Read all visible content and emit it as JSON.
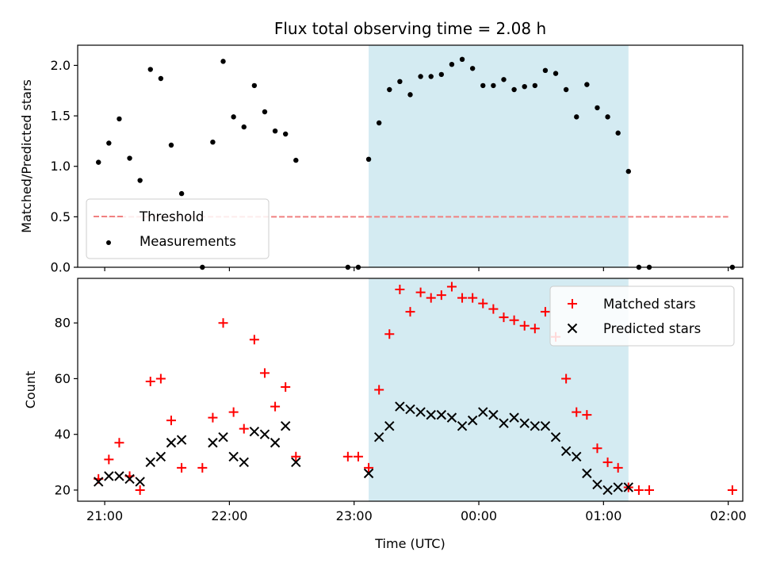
{
  "chart_data": [
    {
      "type": "scatter",
      "title": "Flux total observing time = 2.08 h",
      "xlabel": "",
      "ylabel": "Matched/Predicted stars",
      "xlim": [
        "20:47",
        "02:07"
      ],
      "ylim": [
        0,
        2.2
      ],
      "xticks": [
        "21:00",
        "22:00",
        "23:00",
        "00:00",
        "01:00",
        "02:00"
      ],
      "xtick_labels_visible": false,
      "yticks": [
        0.0,
        0.5,
        1.0,
        1.5,
        2.0
      ],
      "ytick_labels": [
        "0.0",
        "0.5",
        "1.0",
        "1.5",
        "2.0"
      ],
      "shaded_region": {
        "start": "23:07",
        "end": "01:12",
        "color": "#add8e6"
      },
      "legend": {
        "position": "lower-left"
      },
      "series": [
        {
          "name": "Threshold",
          "kind": "line",
          "style": "dashed",
          "color": "#f08080",
          "points": [
            [
              "21:00",
              0.5
            ],
            [
              "02:00",
              0.5
            ]
          ]
        },
        {
          "name": "Measurements",
          "kind": "scatter",
          "marker": "dot",
          "color": "#000000",
          "points": [
            [
              "20:57",
              1.04
            ],
            [
              "21:02",
              1.23
            ],
            [
              "21:07",
              1.47
            ],
            [
              "21:12",
              1.08
            ],
            [
              "21:17",
              0.86
            ],
            [
              "21:22",
              1.96
            ],
            [
              "21:27",
              1.87
            ],
            [
              "21:32",
              1.21
            ],
            [
              "21:37",
              0.73
            ],
            [
              "21:47",
              0.0
            ],
            [
              "21:52",
              1.24
            ],
            [
              "21:57",
              2.04
            ],
            [
              "22:02",
              1.49
            ],
            [
              "22:07",
              1.39
            ],
            [
              "22:12",
              1.8
            ],
            [
              "22:17",
              1.54
            ],
            [
              "22:22",
              1.35
            ],
            [
              "22:27",
              1.32
            ],
            [
              "22:32",
              1.06
            ],
            [
              "22:57",
              0.0
            ],
            [
              "23:02",
              0.0
            ],
            [
              "23:07",
              1.07
            ],
            [
              "23:12",
              1.43
            ],
            [
              "23:17",
              1.76
            ],
            [
              "23:22",
              1.84
            ],
            [
              "23:27",
              1.71
            ],
            [
              "23:32",
              1.89
            ],
            [
              "23:37",
              1.89
            ],
            [
              "23:42",
              1.91
            ],
            [
              "23:47",
              2.01
            ],
            [
              "23:52",
              2.06
            ],
            [
              "23:57",
              1.97
            ],
            [
              "00:02",
              1.8
            ],
            [
              "00:07",
              1.8
            ],
            [
              "00:12",
              1.86
            ],
            [
              "00:17",
              1.76
            ],
            [
              "00:22",
              1.79
            ],
            [
              "00:27",
              1.8
            ],
            [
              "00:32",
              1.95
            ],
            [
              "00:37",
              1.92
            ],
            [
              "00:42",
              1.76
            ],
            [
              "00:47",
              1.49
            ],
            [
              "00:52",
              1.81
            ],
            [
              "00:57",
              1.58
            ],
            [
              "01:02",
              1.49
            ],
            [
              "01:07",
              1.33
            ],
            [
              "01:12",
              0.95
            ],
            [
              "01:17",
              0.0
            ],
            [
              "01:22",
              0.0
            ],
            [
              "02:02",
              0.0
            ]
          ]
        }
      ]
    },
    {
      "type": "scatter",
      "title": "",
      "xlabel": "Time (UTC)",
      "ylabel": "Count",
      "xlim": [
        "20:47",
        "02:07"
      ],
      "ylim": [
        16,
        96
      ],
      "xticks": [
        "21:00",
        "22:00",
        "23:00",
        "00:00",
        "01:00",
        "02:00"
      ],
      "xtick_labels": [
        "21:00",
        "22:00",
        "23:00",
        "00:00",
        "01:00",
        "02:00"
      ],
      "yticks": [
        20,
        40,
        60,
        80
      ],
      "ytick_labels": [
        "20",
        "40",
        "60",
        "80"
      ],
      "shaded_region": {
        "start": "23:07",
        "end": "01:12",
        "color": "#add8e6"
      },
      "legend": {
        "position": "upper-right"
      },
      "series": [
        {
          "name": "Matched stars",
          "kind": "scatter",
          "marker": "plus",
          "color": "#ff0000",
          "points": [
            [
              "20:57",
              24
            ],
            [
              "21:02",
              31
            ],
            [
              "21:07",
              37
            ],
            [
              "21:12",
              25
            ],
            [
              "21:17",
              20
            ],
            [
              "21:22",
              59
            ],
            [
              "21:27",
              60
            ],
            [
              "21:32",
              45
            ],
            [
              "21:37",
              28
            ],
            [
              "21:47",
              28
            ],
            [
              "21:52",
              46
            ],
            [
              "21:57",
              80
            ],
            [
              "22:02",
              48
            ],
            [
              "22:07",
              42
            ],
            [
              "22:12",
              74
            ],
            [
              "22:17",
              62
            ],
            [
              "22:22",
              50
            ],
            [
              "22:27",
              57
            ],
            [
              "22:32",
              32
            ],
            [
              "22:57",
              32
            ],
            [
              "23:02",
              32
            ],
            [
              "23:07",
              28
            ],
            [
              "23:12",
              56
            ],
            [
              "23:17",
              76
            ],
            [
              "23:22",
              92
            ],
            [
              "23:27",
              84
            ],
            [
              "23:32",
              91
            ],
            [
              "23:37",
              89
            ],
            [
              "23:42",
              90
            ],
            [
              "23:47",
              93
            ],
            [
              "23:52",
              89
            ],
            [
              "23:57",
              89
            ],
            [
              "00:02",
              87
            ],
            [
              "00:07",
              85
            ],
            [
              "00:12",
              82
            ],
            [
              "00:17",
              81
            ],
            [
              "00:22",
              79
            ],
            [
              "00:27",
              78
            ],
            [
              "00:32",
              84
            ],
            [
              "00:37",
              75
            ],
            [
              "00:42",
              60
            ],
            [
              "00:47",
              48
            ],
            [
              "00:52",
              47
            ],
            [
              "00:57",
              35
            ],
            [
              "01:02",
              30
            ],
            [
              "01:07",
              28
            ],
            [
              "01:12",
              21
            ],
            [
              "01:17",
              20
            ],
            [
              "01:22",
              20
            ],
            [
              "02:02",
              20
            ]
          ]
        },
        {
          "name": "Predicted stars",
          "kind": "scatter",
          "marker": "x",
          "color": "#000000",
          "points": [
            [
              "20:57",
              23
            ],
            [
              "21:02",
              25
            ],
            [
              "21:07",
              25
            ],
            [
              "21:12",
              24
            ],
            [
              "21:17",
              23
            ],
            [
              "21:22",
              30
            ],
            [
              "21:27",
              32
            ],
            [
              "21:32",
              37
            ],
            [
              "21:37",
              38
            ],
            [
              "21:52",
              37
            ],
            [
              "21:57",
              39
            ],
            [
              "22:02",
              32
            ],
            [
              "22:07",
              30
            ],
            [
              "22:12",
              41
            ],
            [
              "22:17",
              40
            ],
            [
              "22:22",
              37
            ],
            [
              "22:27",
              43
            ],
            [
              "22:32",
              30
            ],
            [
              "23:07",
              26
            ],
            [
              "23:12",
              39
            ],
            [
              "23:17",
              43
            ],
            [
              "23:22",
              50
            ],
            [
              "23:27",
              49
            ],
            [
              "23:32",
              48
            ],
            [
              "23:37",
              47
            ],
            [
              "23:42",
              47
            ],
            [
              "23:47",
              46
            ],
            [
              "23:52",
              43
            ],
            [
              "23:57",
              45
            ],
            [
              "00:02",
              48
            ],
            [
              "00:07",
              47
            ],
            [
              "00:12",
              44
            ],
            [
              "00:17",
              46
            ],
            [
              "00:22",
              44
            ],
            [
              "00:27",
              43
            ],
            [
              "00:32",
              43
            ],
            [
              "00:37",
              39
            ],
            [
              "00:42",
              34
            ],
            [
              "00:47",
              32
            ],
            [
              "00:52",
              26
            ],
            [
              "00:57",
              22
            ],
            [
              "01:02",
              20
            ],
            [
              "01:07",
              21
            ],
            [
              "01:12",
              21
            ]
          ]
        }
      ]
    }
  ]
}
